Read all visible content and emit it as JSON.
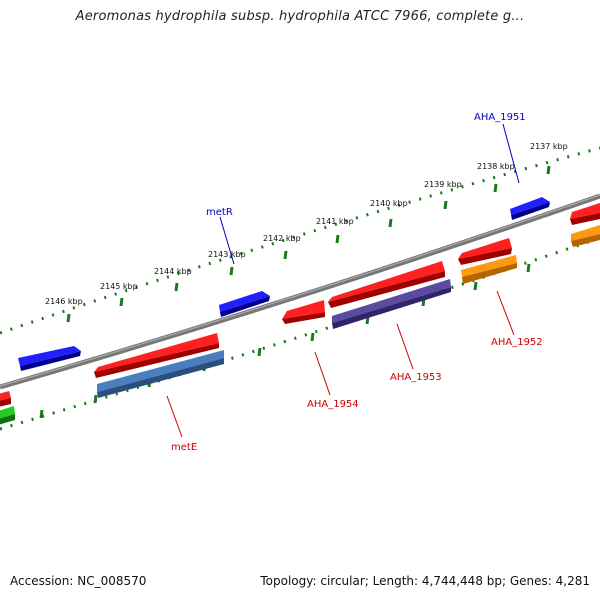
{
  "title": "Aeromonas hydrophila subsp. hydrophila ATCC 7966, complete g...",
  "footer": {
    "accession": "Accession: NC_008570",
    "summary": "Topology: circular; Length: 4,744,448 bp; Genes: 4,281"
  },
  "scale_labels": [
    "2146 kbp",
    "2145 kbp",
    "2144 kbp",
    "2143 kbp",
    "2142 kbp",
    "2141 kbp",
    "2140 kbp",
    "2139 kbp",
    "2138 kbp",
    "2137 kbp"
  ],
  "gene_labels": {
    "metR": "metR",
    "AHA_1951": "AHA_1951",
    "metE": "metE",
    "AHA_1954": "AHA_1954",
    "AHA_1953": "AHA_1953",
    "AHA_1952": "AHA_1952"
  },
  "colors": {
    "forward_label": "#0000cc",
    "reverse_label": "#cc0000",
    "scale_dots": "#1a7a1a",
    "backbone": "#7a7a7a"
  }
}
